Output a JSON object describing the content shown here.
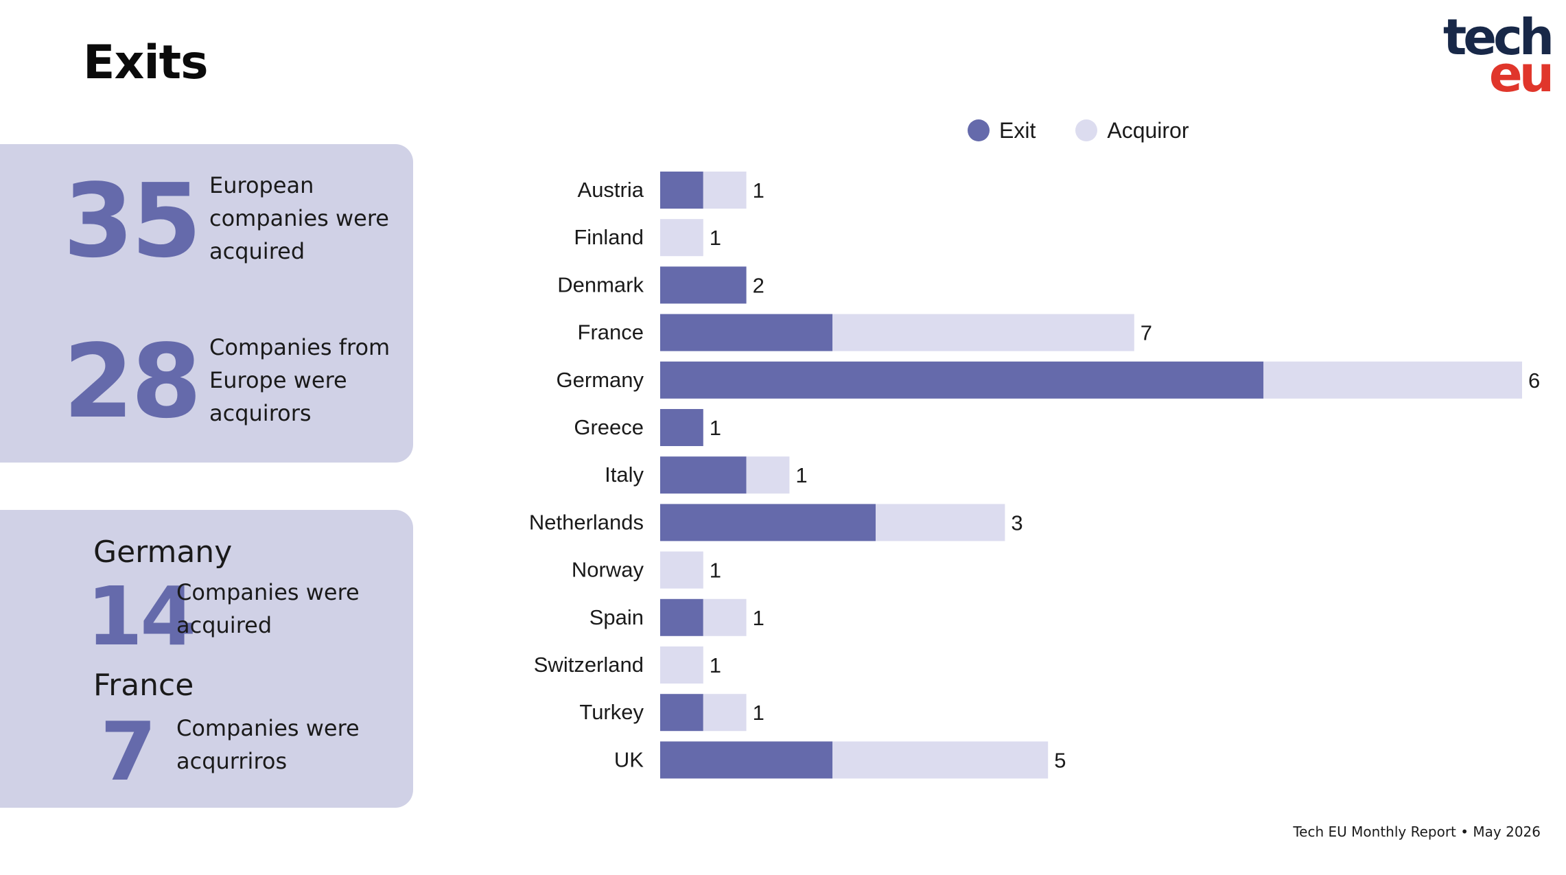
{
  "page_title": "Exits",
  "logo": {
    "line1": "tech",
    "line2": "eu"
  },
  "summary": {
    "acquired": {
      "number": "35",
      "text": "European companies were acquired"
    },
    "acquirors": {
      "number": "28",
      "text": "Companies from Europe were acquirors"
    }
  },
  "highlights": {
    "germany": {
      "country": "Germany",
      "number": "14",
      "text": "Companies were acquired"
    },
    "france": {
      "country": "France",
      "number": "7",
      "text": "Companies were acqurriros"
    }
  },
  "footer": "Tech EU Monthly Report • May 2026",
  "colors": {
    "exit": "#656aab",
    "acquiror": "#dcdcef",
    "panel": "#d0d1e6"
  },
  "chart_data": {
    "type": "bar",
    "orientation": "horizontal",
    "stacked": true,
    "categories": [
      "Austria",
      "Finland",
      "Denmark",
      "France",
      "Germany",
      "Greece",
      "Italy",
      "Netherlands",
      "Norway",
      "Spain",
      "Switzerland",
      "Turkey",
      "UK"
    ],
    "series": [
      {
        "name": "Exit",
        "values": [
          1,
          0,
          2,
          4,
          14,
          1,
          2,
          5,
          0,
          1,
          0,
          1,
          4
        ]
      },
      {
        "name": "Acquiror",
        "values": [
          1,
          1,
          0,
          7,
          6,
          0,
          1,
          3,
          1,
          1,
          1,
          1,
          5
        ]
      }
    ],
    "legend": "top",
    "grid": false,
    "data_labels": true
  }
}
